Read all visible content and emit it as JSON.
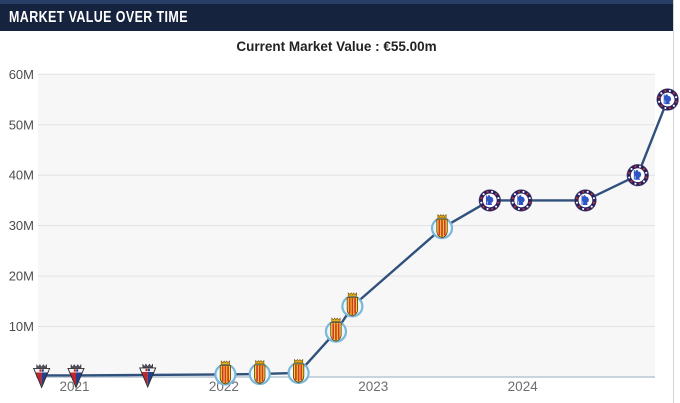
{
  "header": {
    "title": "MARKET VALUE OVER TIME"
  },
  "subtitle": {
    "text": "Current Market Value : €55.00m"
  },
  "colors": {
    "titlebar_bg": "#16233f",
    "titlebar_text": "#ffffff",
    "top_strip": "#2a3f66",
    "plot_bg": "#f7f7f8",
    "gridline": "#e2e2e5",
    "axis_line": "#c9d3de",
    "series_line": "#30517b",
    "tick_label": "#4d4d4d",
    "x_label": "#6e6e6e"
  },
  "chart_data": {
    "type": "line",
    "title": "Market Value Over Time",
    "subtitle": "Current Market Value : €55.00m",
    "current_value_eur_m": 55.0,
    "currency": "EUR",
    "y_unit": "million €",
    "ylim": [
      0,
      60
    ],
    "y_ticks": [
      10,
      20,
      30,
      40,
      50,
      60
    ],
    "y_tick_labels": [
      "10M",
      "20M",
      "30M",
      "40M",
      "50M",
      "60M"
    ],
    "x_ticks": [
      2021,
      2022,
      2023,
      2024
    ],
    "x_tick_labels": [
      "2021",
      "2022",
      "2023",
      "2024"
    ],
    "grid": true,
    "legend": "none",
    "marker_style": "club-crest-icons",
    "clubs": {
      "mirandes": {
        "name": "CD Mirandes",
        "icon": "mirandes-crest-icon",
        "colors": [
          "#c0262c",
          "#223f8e",
          "#f2f2f2"
        ]
      },
      "villarreal": {
        "name": "Villarreal CF",
        "icon": "villarreal-crest-icon",
        "colors": [
          "#f5d436",
          "#d2362c",
          "#79b7d9"
        ]
      },
      "chelsea": {
        "name": "Chelsea FC",
        "icon": "chelsea-crest-icon",
        "colors": [
          "#28215e",
          "#2f55c5",
          "#ffffff"
        ]
      }
    },
    "points": [
      {
        "date": "Oct 2020",
        "x": 2020.78,
        "value_m": 0.3,
        "club": "mirandes"
      },
      {
        "date": "Jan 2021",
        "x": 2021.01,
        "value_m": 0.3,
        "club": "mirandes"
      },
      {
        "date": "Jun 2021",
        "x": 2021.49,
        "value_m": 0.4,
        "club": "mirandes"
      },
      {
        "date": "Jan 2022",
        "x": 2022.01,
        "value_m": 0.5,
        "club": "villarreal"
      },
      {
        "date": "Mar 2022",
        "x": 2022.24,
        "value_m": 0.6,
        "club": "villarreal"
      },
      {
        "date": "Jun 2022",
        "x": 2022.5,
        "value_m": 0.8,
        "club": "villarreal"
      },
      {
        "date": "Oct 2022",
        "x": 2022.75,
        "value_m": 9.0,
        "club": "villarreal"
      },
      {
        "date": "Nov 2022",
        "x": 2022.86,
        "value_m": 14.0,
        "club": "villarreal"
      },
      {
        "date": "Jun 2023",
        "x": 2023.46,
        "value_m": 29.5,
        "club": "villarreal"
      },
      {
        "date": "Oct 2023",
        "x": 2023.78,
        "value_m": 35.0,
        "club": "chelsea"
      },
      {
        "date": "Dec 2023",
        "x": 2023.99,
        "value_m": 35.0,
        "club": "chelsea"
      },
      {
        "date": "Jun 2024",
        "x": 2024.42,
        "value_m": 35.0,
        "club": "chelsea"
      },
      {
        "date": "Oct 2024",
        "x": 2024.77,
        "value_m": 40.0,
        "club": "chelsea"
      },
      {
        "date": "Dec 2024",
        "x": 2024.97,
        "value_m": 55.0,
        "club": "chelsea"
      }
    ]
  }
}
